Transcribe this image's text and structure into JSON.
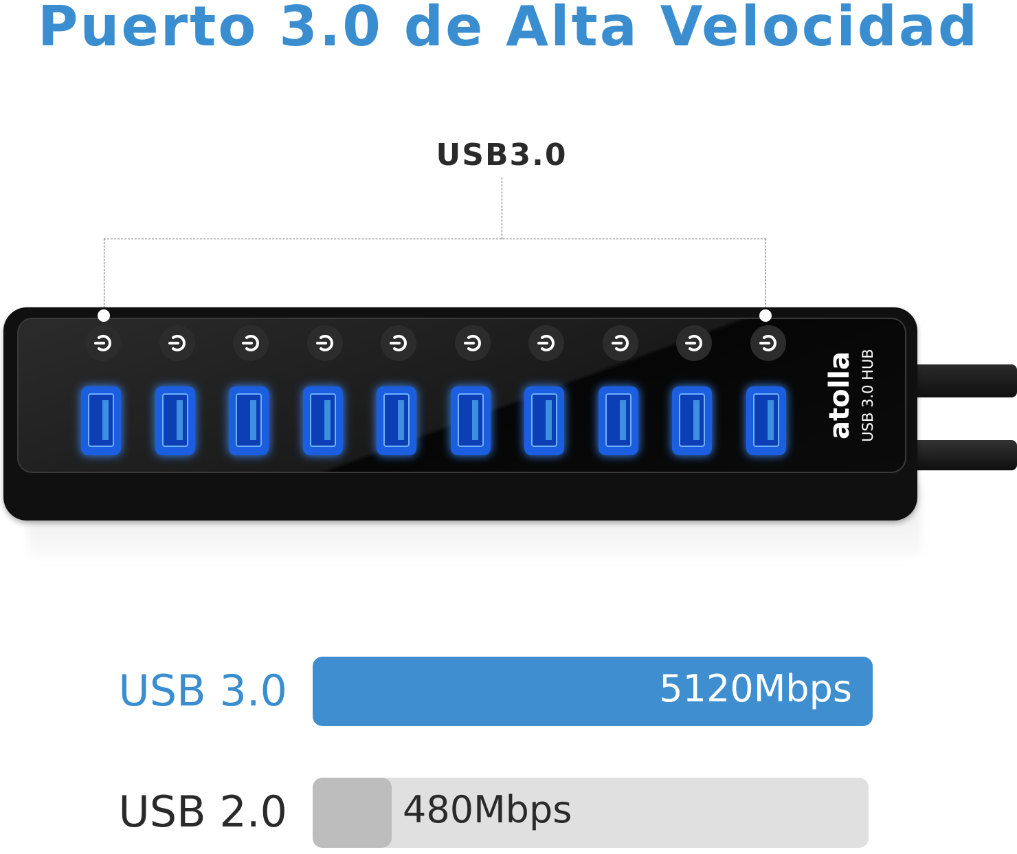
{
  "title": "Puerto 3.0 de Alta Velocidad",
  "callout": {
    "label": "USB3.0"
  },
  "product": {
    "brand": "atolla",
    "model_label": "USB 3.0 HUB",
    "port_count": 10,
    "port_light_color": "#1b5fe0",
    "switch_icon": "power-switch-icon"
  },
  "speed_comparison": {
    "rows": [
      {
        "label": "USB 3.0",
        "value_label": "5120Mbps",
        "value": 5120,
        "bar_color": "#3f8fd0",
        "label_color": "#3a8ed0"
      },
      {
        "label": "USB 2.0",
        "value_label": "480Mbps",
        "value": 480,
        "bar_color": "#bdbdbd",
        "track_color": "#e0e0e0",
        "label_color": "#2a2a2a"
      }
    ]
  },
  "colors": {
    "accent": "#3a8ed0",
    "hub_body": "#101010"
  }
}
